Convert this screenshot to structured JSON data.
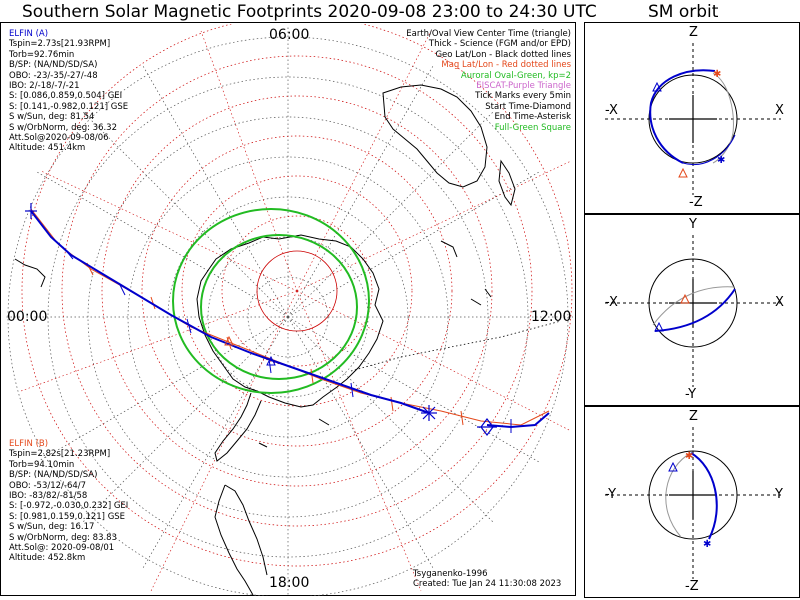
{
  "title": "Southern Solar Magnetic Footprints 2020-09-08 23:00 to 24:30 UTC",
  "orbit_title": "SM orbit",
  "clock": {
    "top": "06:00",
    "left": "00:00",
    "right": "12:00",
    "bottom": "18:00"
  },
  "elfin_a": {
    "name": "ELFIN (A)",
    "lines": [
      "Tspin=2.73s[21.93RPM]",
      "Torb=92.76min",
      "B/SP: (NA/ND/SD/SA)",
      "OBO: -23/-35/-27/-48",
      "IBO: 2/-18/-7/-21",
      "S: [0.086,0.859,0.504] GEI",
      "S: [0.141,-0.982,0.121] GSE",
      "S w/Sun, deg: 81.54",
      "S w/OrbNorm, deg: 36.32",
      "Att.Sol@2020-09-08/06",
      "Altitude: 451.4km"
    ]
  },
  "elfin_b": {
    "name": "ELFIN (B)",
    "lines": [
      "Tspin=2.82s[21.23RPM]",
      "Torb=94.10min",
      "B/SP: (NA/ND/SD/SA)",
      "OBO: -53/12/-64/7",
      "IBO: -83/82/-81/58",
      "S: [-0.972,-0.030,0.232] GEI",
      "S: [0.981,0.159,0.121] GSE",
      "S w/Sun, deg: 16.17",
      "S w/OrbNorm, deg: 83.83",
      "Att.Sol@: 2020-09-08/01",
      "Altitude: 452.8km"
    ]
  },
  "legend": {
    "l1": "Earth/Oval View Center Time (triangle)",
    "l2": "Thick - Science (FGM and/or EPD)",
    "l3": "Geo Lat/Lon - Black dotted lines",
    "l4": "Mag Lat/Lon - Red dotted lines",
    "l5": "Auroral Oval-Green, kp=2",
    "l6": "EISCAT-Purple Triangle",
    "l7": "Tick Marks every 5min",
    "l8": "Start Time-Diamond",
    "l9": "End Time-Asterisk",
    "l10": "Full-Green Square"
  },
  "credits": {
    "model": "Tsyganenko-1996",
    "created": "Created: Tue Jan 24 11:30:08 2023"
  },
  "panels": [
    {
      "top": "Z",
      "bottom": "-Z",
      "left": "-X",
      "right": "X"
    },
    {
      "top": "Y",
      "bottom": "-Y",
      "left": "-X",
      "right": "X"
    },
    {
      "top": "Z",
      "bottom": "-Z",
      "left": "-Y",
      "right": "Y"
    }
  ],
  "colors": {
    "elfin_a": "#0000cc",
    "elfin_b": "#e4481b",
    "oval": "#22bb22",
    "mag_grid": "#cc0000",
    "eiscat": "#cc66cc"
  }
}
